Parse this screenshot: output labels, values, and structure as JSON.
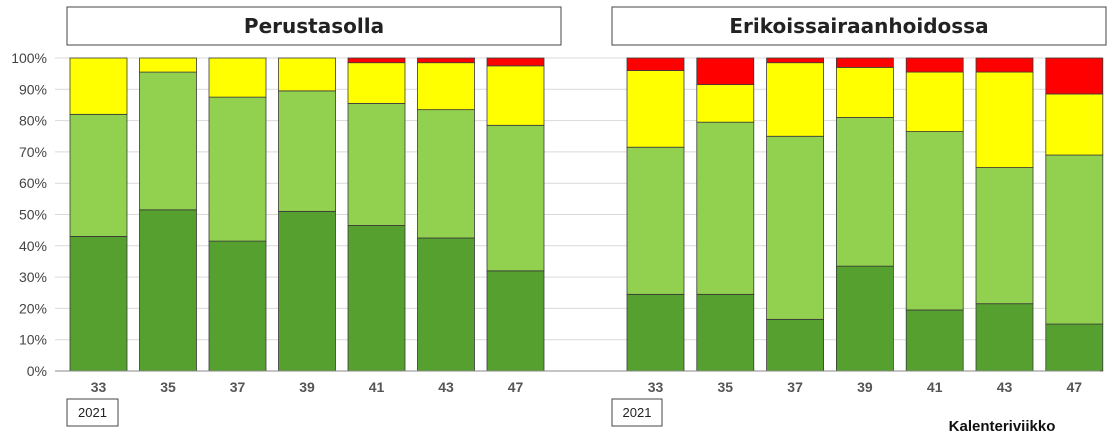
{
  "chart_data": {
    "type": "bar",
    "stacked": true,
    "ylim": [
      0,
      100
    ],
    "yticks": [
      "0%",
      "10%",
      "20%",
      "30%",
      "40%",
      "50%",
      "60%",
      "70%",
      "80%",
      "90%",
      "100%"
    ],
    "grid": true,
    "xlabel": "Kalenteriviikko",
    "colors": {
      "dark_green": "#55a02f",
      "light_green": "#92d050",
      "yellow": "#ffff00",
      "red": "#ff0000"
    },
    "panels": [
      {
        "title": "Perustasolla",
        "year": "2021",
        "categories": [
          "33",
          "35",
          "37",
          "39",
          "41",
          "43",
          "47"
        ],
        "series": [
          {
            "color": "dark_green",
            "values": [
              43,
              51.5,
              41.5,
              51,
              46.5,
              42.5,
              32
            ]
          },
          {
            "color": "light_green",
            "values": [
              39,
              44,
              46,
              38.5,
              39,
              41,
              46.5
            ]
          },
          {
            "color": "yellow",
            "values": [
              18,
              4.5,
              12.5,
              10.5,
              13,
              15,
              19
            ]
          },
          {
            "color": "red",
            "values": [
              0,
              0,
              0,
              0,
              1.5,
              1.5,
              2.5
            ]
          }
        ]
      },
      {
        "title": "Erikoissairaanhoidossa",
        "year": "2021",
        "categories": [
          "33",
          "35",
          "37",
          "39",
          "41",
          "43",
          "47"
        ],
        "series": [
          {
            "color": "dark_green",
            "values": [
              24.5,
              24.5,
              16.5,
              33.5,
              19.5,
              21.5,
              15
            ]
          },
          {
            "color": "light_green",
            "values": [
              47,
              55,
              58.5,
              47.5,
              57,
              43.5,
              54
            ]
          },
          {
            "color": "yellow",
            "values": [
              24.5,
              12,
              23.5,
              16,
              19,
              30.5,
              19.5
            ]
          },
          {
            "color": "red",
            "values": [
              4,
              8.5,
              1.5,
              3,
              4.5,
              4.5,
              11.5
            ]
          }
        ]
      }
    ]
  }
}
